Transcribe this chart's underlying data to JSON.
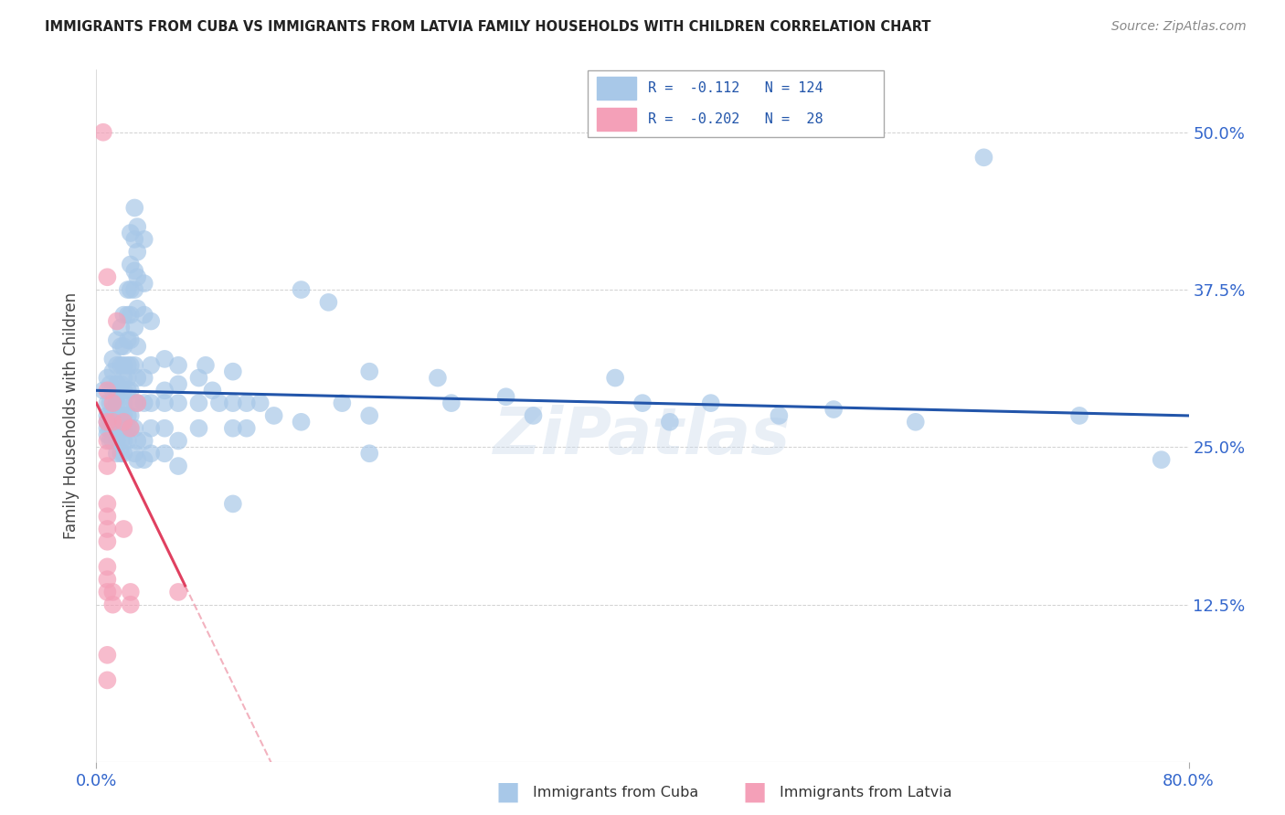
{
  "title": "IMMIGRANTS FROM CUBA VS IMMIGRANTS FROM LATVIA FAMILY HOUSEHOLDS WITH CHILDREN CORRELATION CHART",
  "source": "Source: ZipAtlas.com",
  "ylabel": "Family Households with Children",
  "y_tick_labels": [
    "12.5%",
    "25.0%",
    "37.5%",
    "50.0%"
  ],
  "y_tick_values": [
    0.125,
    0.25,
    0.375,
    0.5
  ],
  "xlim": [
    0.0,
    0.8
  ],
  "ylim": [
    0.0,
    0.55
  ],
  "cuba_color": "#a8c8e8",
  "latvia_color": "#f4a0b8",
  "cuba_line_color": "#2255aa",
  "latvia_line_color": "#e04060",
  "cuba_points": [
    [
      0.005,
      0.295
    ],
    [
      0.008,
      0.305
    ],
    [
      0.008,
      0.285
    ],
    [
      0.008,
      0.275
    ],
    [
      0.008,
      0.27
    ],
    [
      0.008,
      0.265
    ],
    [
      0.008,
      0.26
    ],
    [
      0.01,
      0.3
    ],
    [
      0.01,
      0.285
    ],
    [
      0.01,
      0.275
    ],
    [
      0.01,
      0.265
    ],
    [
      0.01,
      0.255
    ],
    [
      0.012,
      0.32
    ],
    [
      0.012,
      0.31
    ],
    [
      0.012,
      0.295
    ],
    [
      0.012,
      0.28
    ],
    [
      0.012,
      0.275
    ],
    [
      0.012,
      0.27
    ],
    [
      0.012,
      0.265
    ],
    [
      0.012,
      0.255
    ],
    [
      0.015,
      0.335
    ],
    [
      0.015,
      0.315
    ],
    [
      0.015,
      0.3
    ],
    [
      0.015,
      0.29
    ],
    [
      0.015,
      0.285
    ],
    [
      0.015,
      0.275
    ],
    [
      0.015,
      0.265
    ],
    [
      0.015,
      0.255
    ],
    [
      0.015,
      0.245
    ],
    [
      0.018,
      0.345
    ],
    [
      0.018,
      0.33
    ],
    [
      0.018,
      0.315
    ],
    [
      0.018,
      0.3
    ],
    [
      0.018,
      0.285
    ],
    [
      0.018,
      0.275
    ],
    [
      0.018,
      0.265
    ],
    [
      0.018,
      0.255
    ],
    [
      0.018,
      0.245
    ],
    [
      0.02,
      0.355
    ],
    [
      0.02,
      0.33
    ],
    [
      0.02,
      0.315
    ],
    [
      0.02,
      0.305
    ],
    [
      0.02,
      0.295
    ],
    [
      0.02,
      0.285
    ],
    [
      0.02,
      0.275
    ],
    [
      0.02,
      0.265
    ],
    [
      0.02,
      0.255
    ],
    [
      0.02,
      0.245
    ],
    [
      0.023,
      0.375
    ],
    [
      0.023,
      0.355
    ],
    [
      0.023,
      0.335
    ],
    [
      0.023,
      0.315
    ],
    [
      0.023,
      0.305
    ],
    [
      0.023,
      0.295
    ],
    [
      0.023,
      0.275
    ],
    [
      0.023,
      0.265
    ],
    [
      0.023,
      0.255
    ],
    [
      0.025,
      0.42
    ],
    [
      0.025,
      0.395
    ],
    [
      0.025,
      0.375
    ],
    [
      0.025,
      0.355
    ],
    [
      0.025,
      0.335
    ],
    [
      0.025,
      0.315
    ],
    [
      0.025,
      0.295
    ],
    [
      0.025,
      0.275
    ],
    [
      0.025,
      0.265
    ],
    [
      0.028,
      0.44
    ],
    [
      0.028,
      0.415
    ],
    [
      0.028,
      0.39
    ],
    [
      0.028,
      0.375
    ],
    [
      0.028,
      0.345
    ],
    [
      0.028,
      0.315
    ],
    [
      0.028,
      0.285
    ],
    [
      0.028,
      0.265
    ],
    [
      0.028,
      0.245
    ],
    [
      0.03,
      0.425
    ],
    [
      0.03,
      0.405
    ],
    [
      0.03,
      0.385
    ],
    [
      0.03,
      0.36
    ],
    [
      0.03,
      0.33
    ],
    [
      0.03,
      0.305
    ],
    [
      0.03,
      0.285
    ],
    [
      0.03,
      0.255
    ],
    [
      0.03,
      0.24
    ],
    [
      0.035,
      0.415
    ],
    [
      0.035,
      0.38
    ],
    [
      0.035,
      0.355
    ],
    [
      0.035,
      0.305
    ],
    [
      0.035,
      0.285
    ],
    [
      0.035,
      0.255
    ],
    [
      0.035,
      0.24
    ],
    [
      0.04,
      0.35
    ],
    [
      0.04,
      0.315
    ],
    [
      0.04,
      0.285
    ],
    [
      0.04,
      0.265
    ],
    [
      0.04,
      0.245
    ],
    [
      0.05,
      0.32
    ],
    [
      0.05,
      0.295
    ],
    [
      0.05,
      0.285
    ],
    [
      0.05,
      0.265
    ],
    [
      0.05,
      0.245
    ],
    [
      0.06,
      0.315
    ],
    [
      0.06,
      0.3
    ],
    [
      0.06,
      0.285
    ],
    [
      0.06,
      0.255
    ],
    [
      0.06,
      0.235
    ],
    [
      0.075,
      0.305
    ],
    [
      0.075,
      0.285
    ],
    [
      0.075,
      0.265
    ],
    [
      0.08,
      0.315
    ],
    [
      0.085,
      0.295
    ],
    [
      0.09,
      0.285
    ],
    [
      0.1,
      0.31
    ],
    [
      0.1,
      0.285
    ],
    [
      0.1,
      0.265
    ],
    [
      0.1,
      0.205
    ],
    [
      0.11,
      0.285
    ],
    [
      0.11,
      0.265
    ],
    [
      0.12,
      0.285
    ],
    [
      0.13,
      0.275
    ],
    [
      0.15,
      0.375
    ],
    [
      0.15,
      0.27
    ],
    [
      0.17,
      0.365
    ],
    [
      0.18,
      0.285
    ],
    [
      0.2,
      0.31
    ],
    [
      0.2,
      0.275
    ],
    [
      0.2,
      0.245
    ],
    [
      0.25,
      0.305
    ],
    [
      0.26,
      0.285
    ],
    [
      0.3,
      0.29
    ],
    [
      0.32,
      0.275
    ],
    [
      0.38,
      0.305
    ],
    [
      0.4,
      0.285
    ],
    [
      0.42,
      0.27
    ],
    [
      0.45,
      0.285
    ],
    [
      0.5,
      0.275
    ],
    [
      0.54,
      0.28
    ],
    [
      0.6,
      0.27
    ],
    [
      0.65,
      0.48
    ],
    [
      0.72,
      0.275
    ],
    [
      0.78,
      0.24
    ]
  ],
  "latvia_points": [
    [
      0.005,
      0.5
    ],
    [
      0.008,
      0.385
    ],
    [
      0.008,
      0.295
    ],
    [
      0.008,
      0.27
    ],
    [
      0.008,
      0.255
    ],
    [
      0.008,
      0.245
    ],
    [
      0.008,
      0.235
    ],
    [
      0.008,
      0.205
    ],
    [
      0.008,
      0.195
    ],
    [
      0.008,
      0.185
    ],
    [
      0.008,
      0.175
    ],
    [
      0.008,
      0.155
    ],
    [
      0.008,
      0.145
    ],
    [
      0.008,
      0.135
    ],
    [
      0.008,
      0.085
    ],
    [
      0.008,
      0.065
    ],
    [
      0.012,
      0.285
    ],
    [
      0.012,
      0.27
    ],
    [
      0.012,
      0.135
    ],
    [
      0.012,
      0.125
    ],
    [
      0.015,
      0.35
    ],
    [
      0.02,
      0.27
    ],
    [
      0.02,
      0.185
    ],
    [
      0.025,
      0.265
    ],
    [
      0.025,
      0.135
    ],
    [
      0.025,
      0.125
    ],
    [
      0.03,
      0.285
    ],
    [
      0.06,
      0.135
    ]
  ]
}
